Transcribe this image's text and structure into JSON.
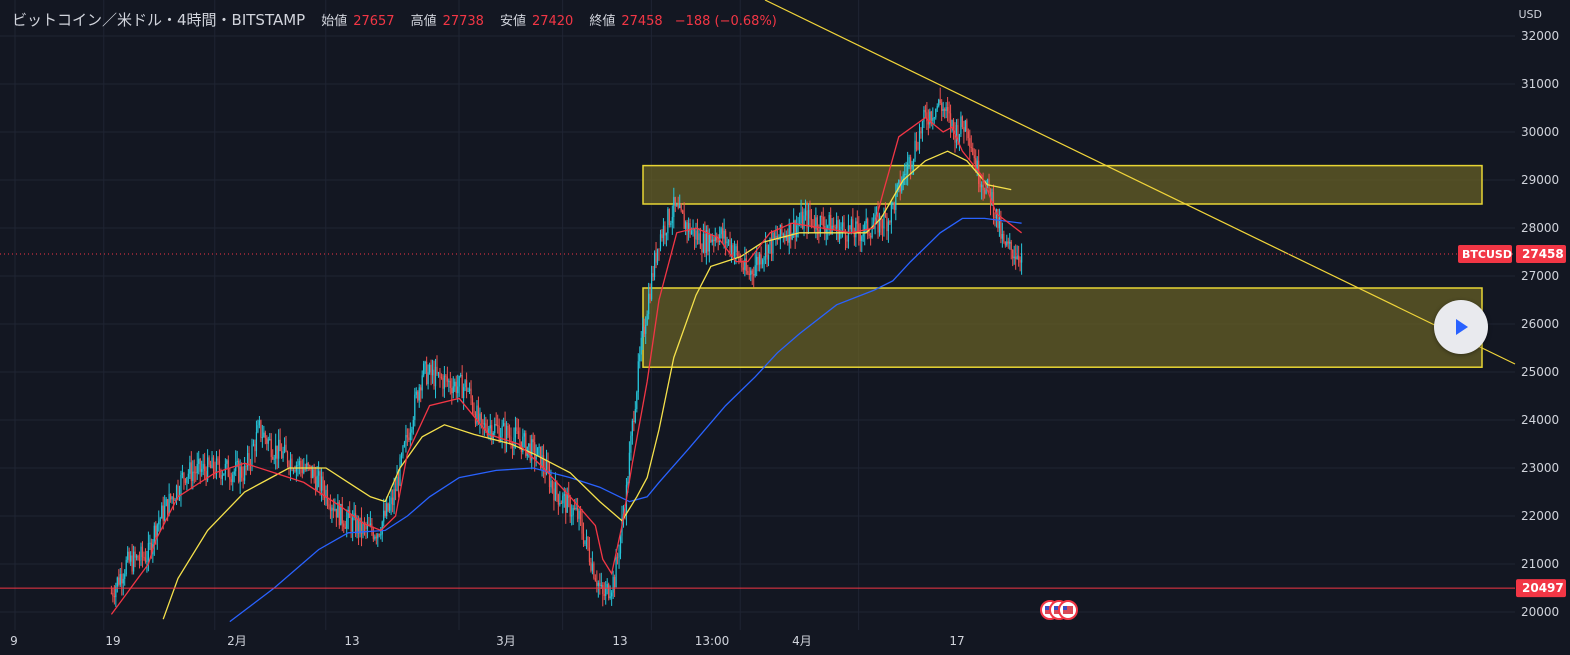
{
  "header": {
    "symbol": "ビットコイン／米ドル・4時間・BITSTAMP",
    "open_label": "始値",
    "open_value": "27657",
    "high_label": "高値",
    "high_value": "27738",
    "low_label": "安値",
    "low_value": "27420",
    "close_label": "終値",
    "close_value": "27458",
    "change": "−188 (−0.68%)"
  },
  "currency_label": "USD",
  "price_tags": {
    "ticker": "BTCUSD",
    "last_price": "27458",
    "line_price": "20497"
  },
  "colors": {
    "background": "#131722",
    "up": "#26c6da",
    "down": "#ef5350",
    "ema_fast": "#f23645",
    "ema_mid": "#f5e14b",
    "ema_slow": "#2962ff",
    "zone_border": "#e8d534",
    "zone_fill": "#6b6425",
    "trendline": "#f1d53a",
    "tag_red": "#f23645"
  },
  "icons": {
    "play": "play-icon",
    "events": "us-flag-event-icons"
  },
  "chart_data": {
    "type": "candlestick",
    "title": "ビットコイン／米ドル・4時間・BITSTAMP",
    "ylabel": "USD",
    "ylim": [
      19800,
      32400
    ],
    "y_ticks": [
      20000,
      21000,
      22000,
      23000,
      24000,
      25000,
      26000,
      27000,
      28000,
      29000,
      30000,
      31000,
      32000
    ],
    "x_tick_labels": [
      "9",
      "19",
      "2月",
      "13",
      "3月",
      "13",
      "13:00",
      "4月",
      "17"
    ],
    "x_tick_pos": [
      0,
      60,
      135,
      210,
      300,
      370,
      430,
      490,
      570
    ],
    "grid": true,
    "last_price": 27458,
    "horizontal_line": 20497,
    "series_anchor_x": [
      30,
      40,
      55,
      60,
      80,
      100,
      120,
      130,
      140,
      150,
      165,
      175,
      185,
      200,
      210,
      220,
      240,
      265,
      270,
      280,
      285,
      298,
      305,
      320,
      330,
      345,
      362,
      370,
      378,
      383,
      388,
      392,
      400,
      410,
      420,
      430,
      440,
      450,
      460,
      470,
      485,
      500,
      520,
      535,
      555,
      580,
      590,
      600,
      608,
      615,
      625,
      633,
      645
    ],
    "series_anchor_y": [
      20400,
      21000,
      21200,
      21800,
      22900,
      23000,
      22900,
      23800,
      23400,
      23200,
      22900,
      22500,
      22000,
      21700,
      21700,
      22300,
      25000,
      24700,
      24700,
      23800,
      23900,
      23700,
      23600,
      23200,
      22500,
      22000,
      20300,
      20700,
      22500,
      24200,
      25500,
      26400,
      27800,
      28400,
      28000,
      27700,
      27900,
      27600,
      27000,
      27500,
      27900,
      28200,
      28000,
      27900,
      28200,
      30300,
      30600,
      30000,
      30200,
      29200,
      28600,
      27600,
      27450
    ],
    "ema_fast": {
      "start": 30,
      "points": [
        [
          30,
          19950
        ],
        [
          55,
          21000
        ],
        [
          60,
          21500
        ],
        [
          75,
          22400
        ],
        [
          100,
          22900
        ],
        [
          120,
          23100
        ],
        [
          140,
          22900
        ],
        [
          160,
          22700
        ],
        [
          185,
          22200
        ],
        [
          200,
          21850
        ],
        [
          212,
          21700
        ],
        [
          222,
          22000
        ],
        [
          230,
          23300
        ],
        [
          245,
          24300
        ],
        [
          265,
          24450
        ],
        [
          285,
          23700
        ],
        [
          305,
          23500
        ],
        [
          322,
          23000
        ],
        [
          340,
          22400
        ],
        [
          357,
          21800
        ],
        [
          362,
          21100
        ],
        [
          368,
          20800
        ],
        [
          375,
          21800
        ],
        [
          382,
          23100
        ],
        [
          392,
          24800
        ],
        [
          400,
          26500
        ],
        [
          412,
          27900
        ],
        [
          425,
          28000
        ],
        [
          440,
          27800
        ],
        [
          452,
          27300
        ],
        [
          460,
          27300
        ],
        [
          475,
          27900
        ],
        [
          490,
          28100
        ],
        [
          510,
          28000
        ],
        [
          530,
          27900
        ],
        [
          545,
          28000
        ],
        [
          552,
          28800
        ],
        [
          562,
          29900
        ],
        [
          580,
          30300
        ],
        [
          592,
          30000
        ],
        [
          598,
          30100
        ],
        [
          605,
          29600
        ],
        [
          618,
          29100
        ],
        [
          628,
          28300
        ],
        [
          645,
          27900
        ]
      ]
    },
    "ema_mid": {
      "start": 65,
      "points": [
        [
          65,
          19850
        ],
        [
          75,
          20700
        ],
        [
          95,
          21700
        ],
        [
          120,
          22500
        ],
        [
          135,
          22750
        ],
        [
          150,
          23000
        ],
        [
          175,
          23000
        ],
        [
          190,
          22700
        ],
        [
          205,
          22400
        ],
        [
          215,
          22300
        ],
        [
          225,
          23000
        ],
        [
          240,
          23650
        ],
        [
          255,
          23900
        ],
        [
          275,
          23700
        ],
        [
          300,
          23500
        ],
        [
          315,
          23300
        ],
        [
          340,
          22900
        ],
        [
          360,
          22300
        ],
        [
          375,
          21900
        ],
        [
          385,
          22400
        ],
        [
          392,
          22800
        ],
        [
          400,
          23800
        ],
        [
          410,
          25300
        ],
        [
          425,
          26600
        ],
        [
          435,
          27200
        ],
        [
          455,
          27400
        ],
        [
          470,
          27700
        ],
        [
          495,
          27900
        ],
        [
          520,
          27900
        ],
        [
          540,
          27900
        ],
        [
          550,
          28200
        ],
        [
          565,
          29000
        ],
        [
          580,
          29400
        ],
        [
          595,
          29600
        ],
        [
          608,
          29400
        ],
        [
          622,
          28900
        ],
        [
          638,
          28800
        ]
      ]
    },
    "ema_slow": {
      "start": 110,
      "points": [
        [
          110,
          19800
        ],
        [
          140,
          20500
        ],
        [
          170,
          21300
        ],
        [
          190,
          21650
        ],
        [
          215,
          21700
        ],
        [
          230,
          22000
        ],
        [
          245,
          22400
        ],
        [
          265,
          22800
        ],
        [
          290,
          22950
        ],
        [
          315,
          23000
        ],
        [
          340,
          22800
        ],
        [
          360,
          22600
        ],
        [
          380,
          22300
        ],
        [
          392,
          22400
        ],
        [
          400,
          22700
        ],
        [
          420,
          23400
        ],
        [
          445,
          24300
        ],
        [
          465,
          24900
        ],
        [
          480,
          25400
        ],
        [
          495,
          25800
        ],
        [
          520,
          26400
        ],
        [
          545,
          26700
        ],
        [
          558,
          26900
        ],
        [
          570,
          27300
        ],
        [
          590,
          27900
        ],
        [
          605,
          28200
        ],
        [
          620,
          28200
        ],
        [
          645,
          28100
        ]
      ]
    }
  },
  "zones": [
    {
      "from": 28500,
      "to": 29300,
      "x_start": 400,
      "x_end": 1480
    },
    {
      "from": 25100,
      "to": 26750,
      "x_start": 400,
      "x_end": 1480
    }
  ],
  "trendline": {
    "p1": [
      32400,
      0
    ],
    "p2": [
      25150,
      1515
    ]
  }
}
